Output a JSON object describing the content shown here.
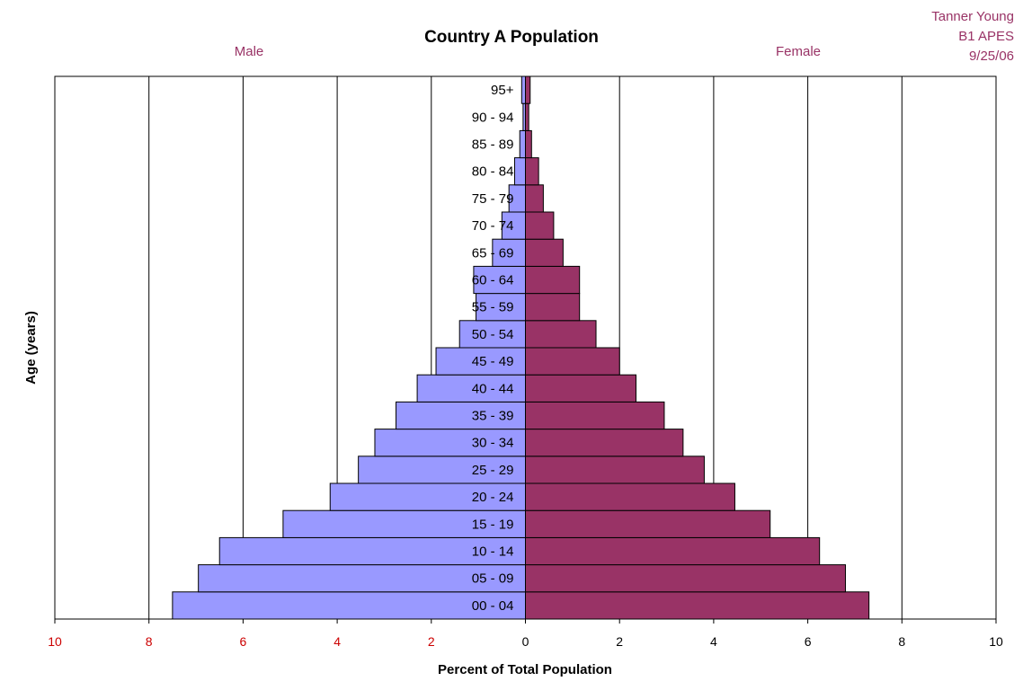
{
  "colors": {
    "male": "#9999ff",
    "female": "#993366",
    "author_text": "#993366",
    "negative_tick_text": "#cc0000"
  },
  "author": {
    "name": "Tanner Young",
    "class": "B1 APES",
    "date": "9/25/06"
  },
  "chart_data": {
    "type": "bar",
    "orientation": "horizontal",
    "title": "Country A Population",
    "xlabel": "Percent of Total Population",
    "ylabel": "Age (years)",
    "side_labels": {
      "left": "Male",
      "right": "Female"
    },
    "xlim": [
      -10,
      10
    ],
    "x_ticks": [
      10,
      8,
      6,
      4,
      2,
      0,
      2,
      4,
      6,
      8,
      10
    ],
    "grid": true,
    "categories": [
      "00 - 04",
      "05 - 09",
      "10 - 14",
      "15 - 19",
      "20 - 24",
      "25 - 29",
      "30 - 34",
      "35 - 39",
      "40 - 44",
      "45 - 49",
      "50 - 54",
      "55 - 59",
      "60 - 64",
      "65 - 69",
      "70 - 74",
      "75 - 79",
      "80 - 84",
      "85 - 89",
      "90 - 94",
      "95+"
    ],
    "series": [
      {
        "name": "Male",
        "values": [
          7.5,
          6.95,
          6.5,
          5.15,
          4.15,
          3.55,
          3.2,
          2.75,
          2.3,
          1.9,
          1.4,
          1.05,
          1.1,
          0.7,
          0.5,
          0.35,
          0.23,
          0.12,
          0.05,
          0.08
        ]
      },
      {
        "name": "Female",
        "values": [
          7.3,
          6.8,
          6.25,
          5.2,
          4.45,
          3.8,
          3.35,
          2.95,
          2.35,
          2.0,
          1.5,
          1.15,
          1.15,
          0.8,
          0.6,
          0.38,
          0.28,
          0.13,
          0.07,
          0.1
        ]
      }
    ]
  }
}
